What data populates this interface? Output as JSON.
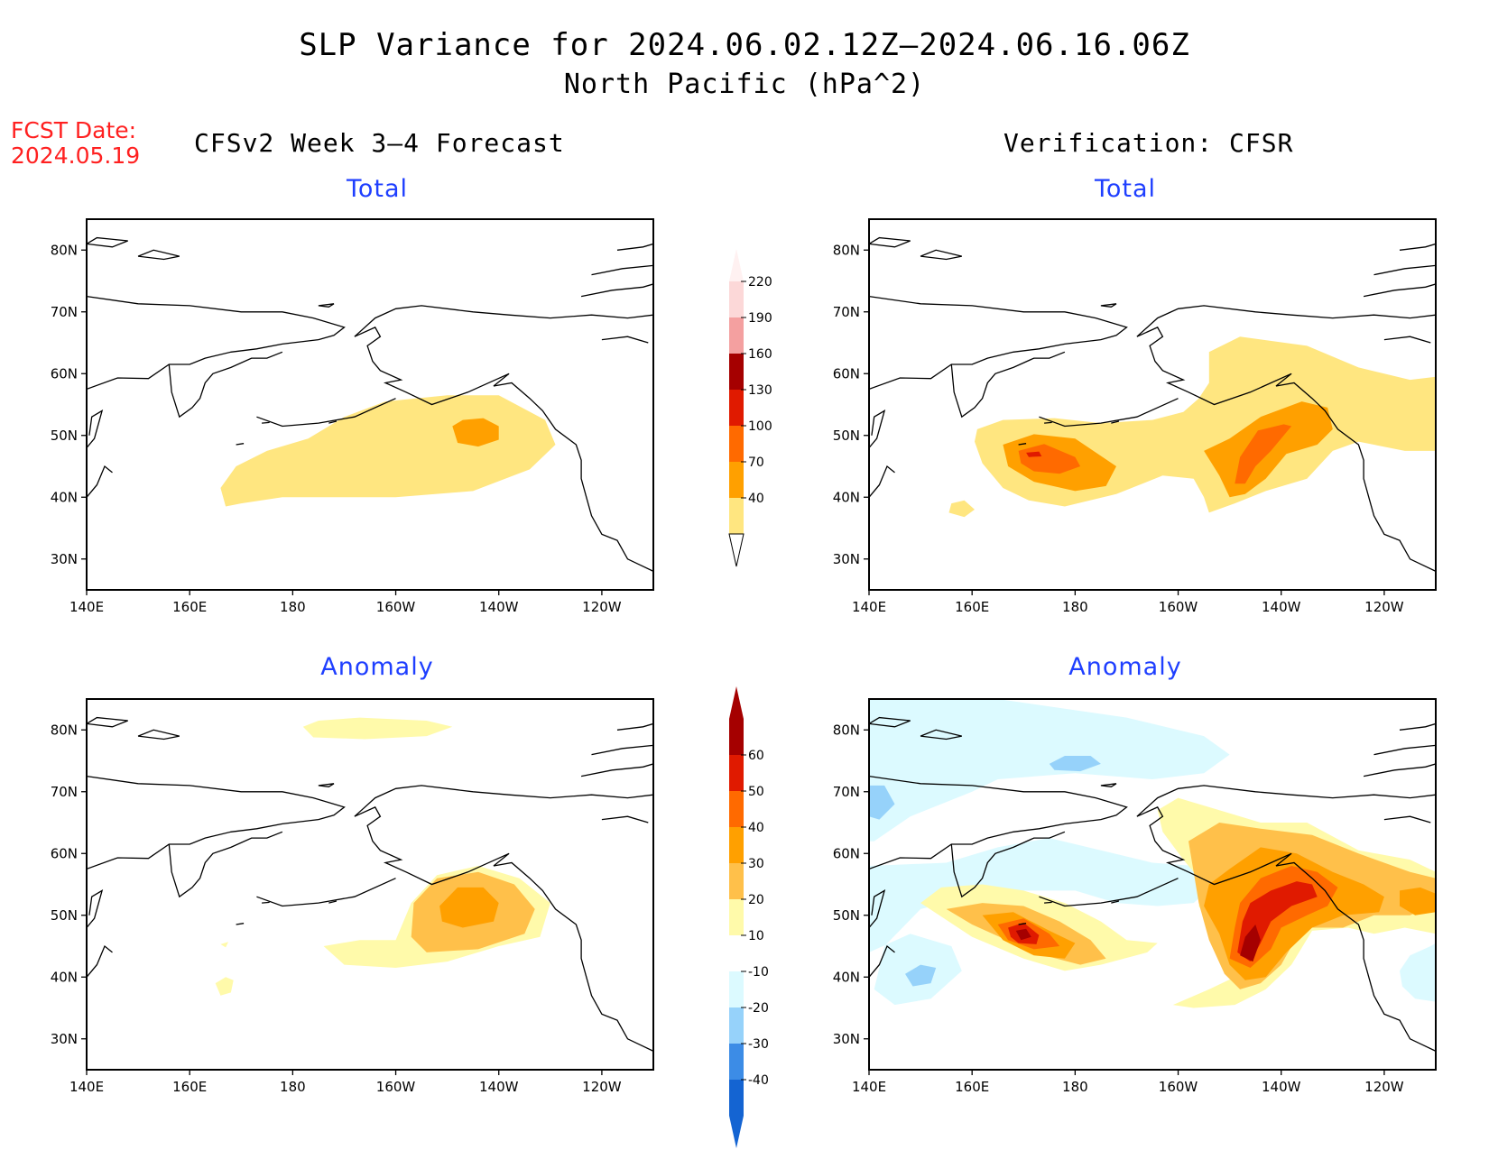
{
  "title_line1": "SLP Variance for 2024.06.02.12Z—2024.06.16.06Z",
  "title_line2": "North Pacific (hPa^2)",
  "fcst_date_label": "FCST Date:",
  "fcst_date_value": "2024.05.19",
  "left_column_title": "CFSv2 Week 3—4 Forecast",
  "right_column_title": "Verification: CFSR",
  "panel_titles": {
    "top_left": "Total",
    "top_right": "Total",
    "bottom_left": "Anomaly",
    "bottom_right": "Anomaly"
  },
  "x_tick_labels": [
    "140E",
    "160E",
    "180",
    "160W",
    "140W",
    "120W"
  ],
  "y_tick_labels": [
    "80N",
    "70N",
    "60N",
    "50N",
    "40N",
    "30N"
  ],
  "map_extent": {
    "lon_min": 140,
    "lon_max": 250,
    "lat_min": 25,
    "lat_max": 85
  },
  "colorbar_total": {
    "labels": [
      "40",
      "70",
      "100",
      "130",
      "160",
      "190",
      "220"
    ],
    "colors": [
      "#ffe680",
      "#ffa000",
      "#ff6a00",
      "#e01a00",
      "#a50000",
      "#f4a0a0",
      "#fcd8d8"
    ]
  },
  "colorbar_anomaly": {
    "labels": [
      "-40",
      "-30",
      "-20",
      "-10",
      "10",
      "20",
      "30",
      "40",
      "50",
      "60"
    ],
    "colors": [
      "#1464d2",
      "#3c8ce6",
      "#96d2fa",
      "#dcfaff",
      "#ffffff",
      "#fffaaa",
      "#ffc04a",
      "#ffa000",
      "#ff6a00",
      "#e01a00",
      "#a50000"
    ]
  }
}
